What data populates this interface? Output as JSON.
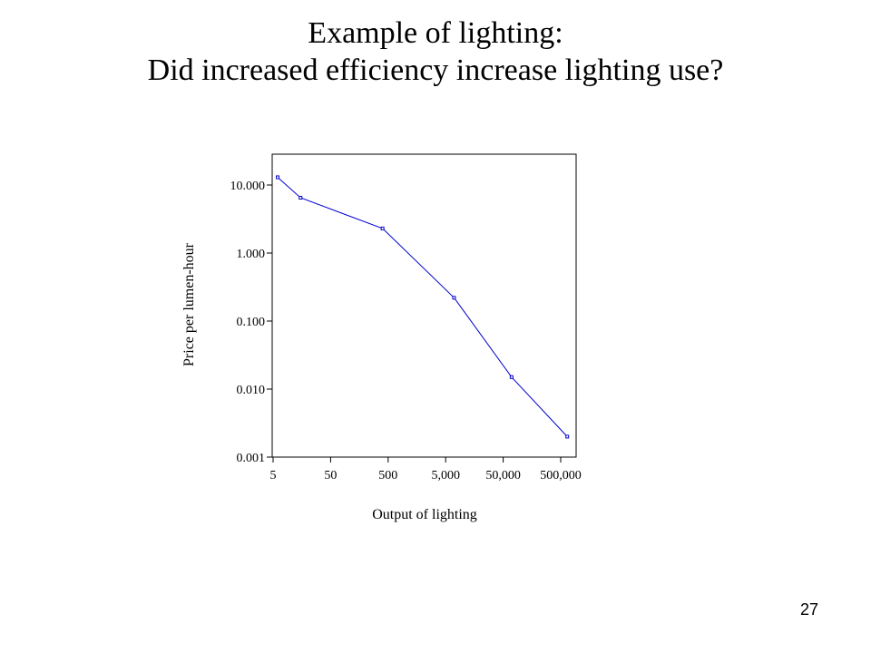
{
  "slide": {
    "title_line1": "Example of lighting:",
    "title_line2": "Did increased efficiency increase lighting use?",
    "page_number": "27"
  },
  "chart_data": {
    "type": "line",
    "title": "",
    "xlabel": "Output of lighting",
    "ylabel": "Price per lumen-hour",
    "x_scale": "log",
    "y_scale": "log",
    "xlim": [
      5,
      1000000
    ],
    "ylim": [
      0.001,
      20
    ],
    "x_ticks": [
      5,
      50,
      500,
      5000,
      50000,
      500000
    ],
    "x_tick_labels": [
      "5",
      "50",
      "500",
      "5,000",
      "50,000",
      "500,000"
    ],
    "y_ticks": [
      0.001,
      0.01,
      0.1,
      1,
      10
    ],
    "y_tick_labels": [
      "0.001",
      "0.010",
      "0.100",
      "1.000",
      "10.000"
    ],
    "grid": false,
    "line_color": "#0000cc",
    "series": [
      {
        "x": [
          6,
          15,
          400,
          7000,
          70000,
          650000
        ],
        "y": [
          13,
          6.5,
          2.3,
          0.22,
          0.015,
          0.002
        ]
      }
    ]
  }
}
